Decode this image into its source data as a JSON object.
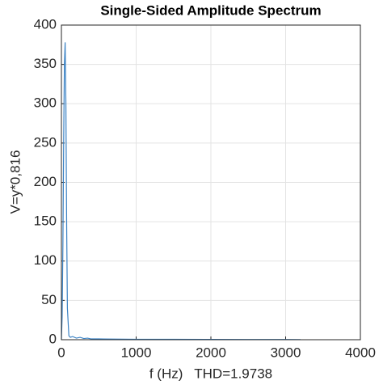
{
  "chart_data": {
    "type": "line",
    "title": "Single-Sided Amplitude Spectrum",
    "x_label": "f (Hz)   THD=1.9738",
    "y_label": "V=y*0,816",
    "x": [
      0,
      10,
      20,
      30,
      40,
      50,
      60,
      70,
      80,
      100,
      120,
      150,
      200,
      250,
      300,
      350,
      400,
      500,
      700,
      1000,
      1500,
      2000,
      2500,
      3000,
      3200
    ],
    "series": [
      {
        "name": "V",
        "color": "#3b82c4",
        "values": [
          0,
          30,
          120,
          250,
          350,
          378,
          300,
          150,
          40,
          5,
          3,
          4,
          2,
          3,
          1.5,
          2,
          1,
          1,
          0.8,
          0.5,
          0.5,
          0.4,
          0.3,
          0.3,
          0.2
        ]
      }
    ],
    "xlim": [
      0,
      4000
    ],
    "xticks": [
      0,
      1000,
      2000,
      3000,
      4000
    ],
    "ylim": [
      0,
      400
    ],
    "yticks": [
      0,
      50,
      100,
      150,
      200,
      250,
      300,
      350,
      400
    ],
    "grid": true
  }
}
